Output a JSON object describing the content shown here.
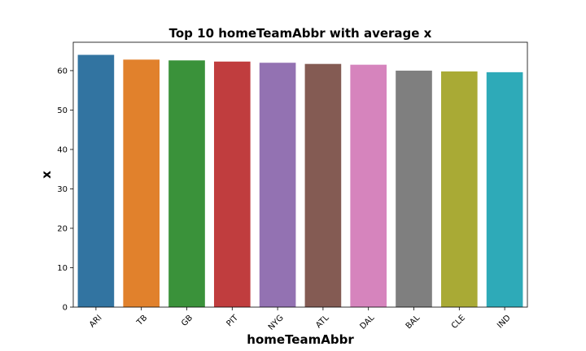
{
  "chart_data": {
    "type": "bar",
    "title": "Top 10 homeTeamAbbr with average x",
    "xlabel": "homeTeamAbbr",
    "ylabel": "x",
    "categories": [
      "ARI",
      "TB",
      "GB",
      "PIT",
      "NYG",
      "ATL",
      "DAL",
      "BAL",
      "CLE",
      "IND"
    ],
    "values": [
      64.0,
      62.8,
      62.6,
      62.3,
      62.0,
      61.7,
      61.5,
      60.0,
      59.8,
      59.6
    ],
    "colors": [
      "#3274a1",
      "#e1812c",
      "#3a923a",
      "#c03d3e",
      "#9372b2",
      "#845b53",
      "#d684bd",
      "#7f7f7f",
      "#a9aa35",
      "#2eaab8"
    ],
    "ylim": [
      0,
      67.2
    ],
    "yticks": [
      0,
      10,
      20,
      30,
      40,
      50,
      60
    ],
    "grid": false,
    "legend": "none"
  }
}
